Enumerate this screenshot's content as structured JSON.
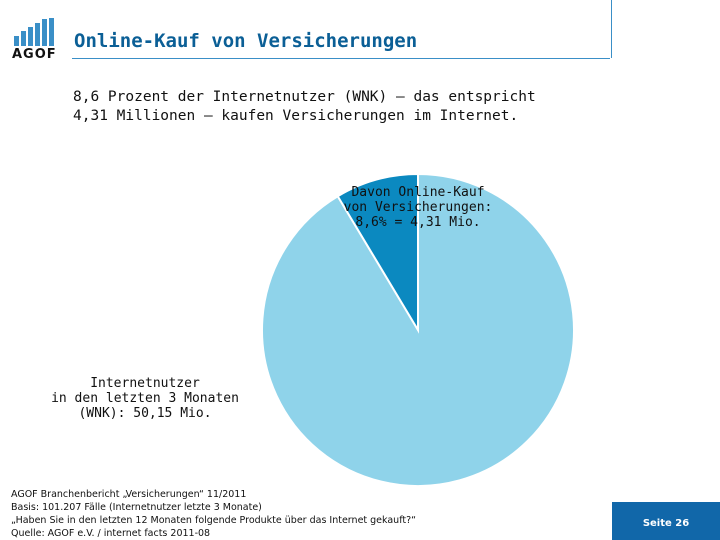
{
  "header": {
    "logo_text": "AGOF",
    "title": "Online-Kauf von Versicherungen",
    "accent_color": "#0b5f96"
  },
  "subtitle": [
    "8,6 Prozent der Internetnutzer (WNK) – das entspricht",
    "4,31 Millionen – kaufen Versicherungen im Internet."
  ],
  "chart_data": {
    "type": "pie",
    "slices": [
      {
        "label": "Davon Online-Kauf von Versicherungen: 8,6% = 4,31 Mio.",
        "value": 8.6,
        "color": "#0b89c0"
      },
      {
        "label": "Internetnutzer in den letzten 3 Monaten (WNK): 50,15 Mio.",
        "value": 91.4,
        "color": "#8fd3ea"
      }
    ],
    "labels": {
      "small": [
        "Davon Online-Kauf",
        "von Versicherungen:",
        "8,6% = 4,31 Mio."
      ],
      "big": [
        "Internetnutzer",
        "in den letzten 3 Monaten",
        "(WNK): 50,15 Mio."
      ]
    }
  },
  "source": [
    "AGOF Branchenbericht „Versicherungen“ 11/2011",
    "Basis: 101.207 Fälle (Internetnutzer letzte 3 Monate)",
    "„Haben Sie in den letzten 12 Monaten folgende Produkte über das Internet gekauft?“",
    "Quelle: AGOF e.V. / internet facts 2011-08"
  ],
  "footer": {
    "page_label": "Seite 26",
    "accent_color": "#1167a9"
  }
}
